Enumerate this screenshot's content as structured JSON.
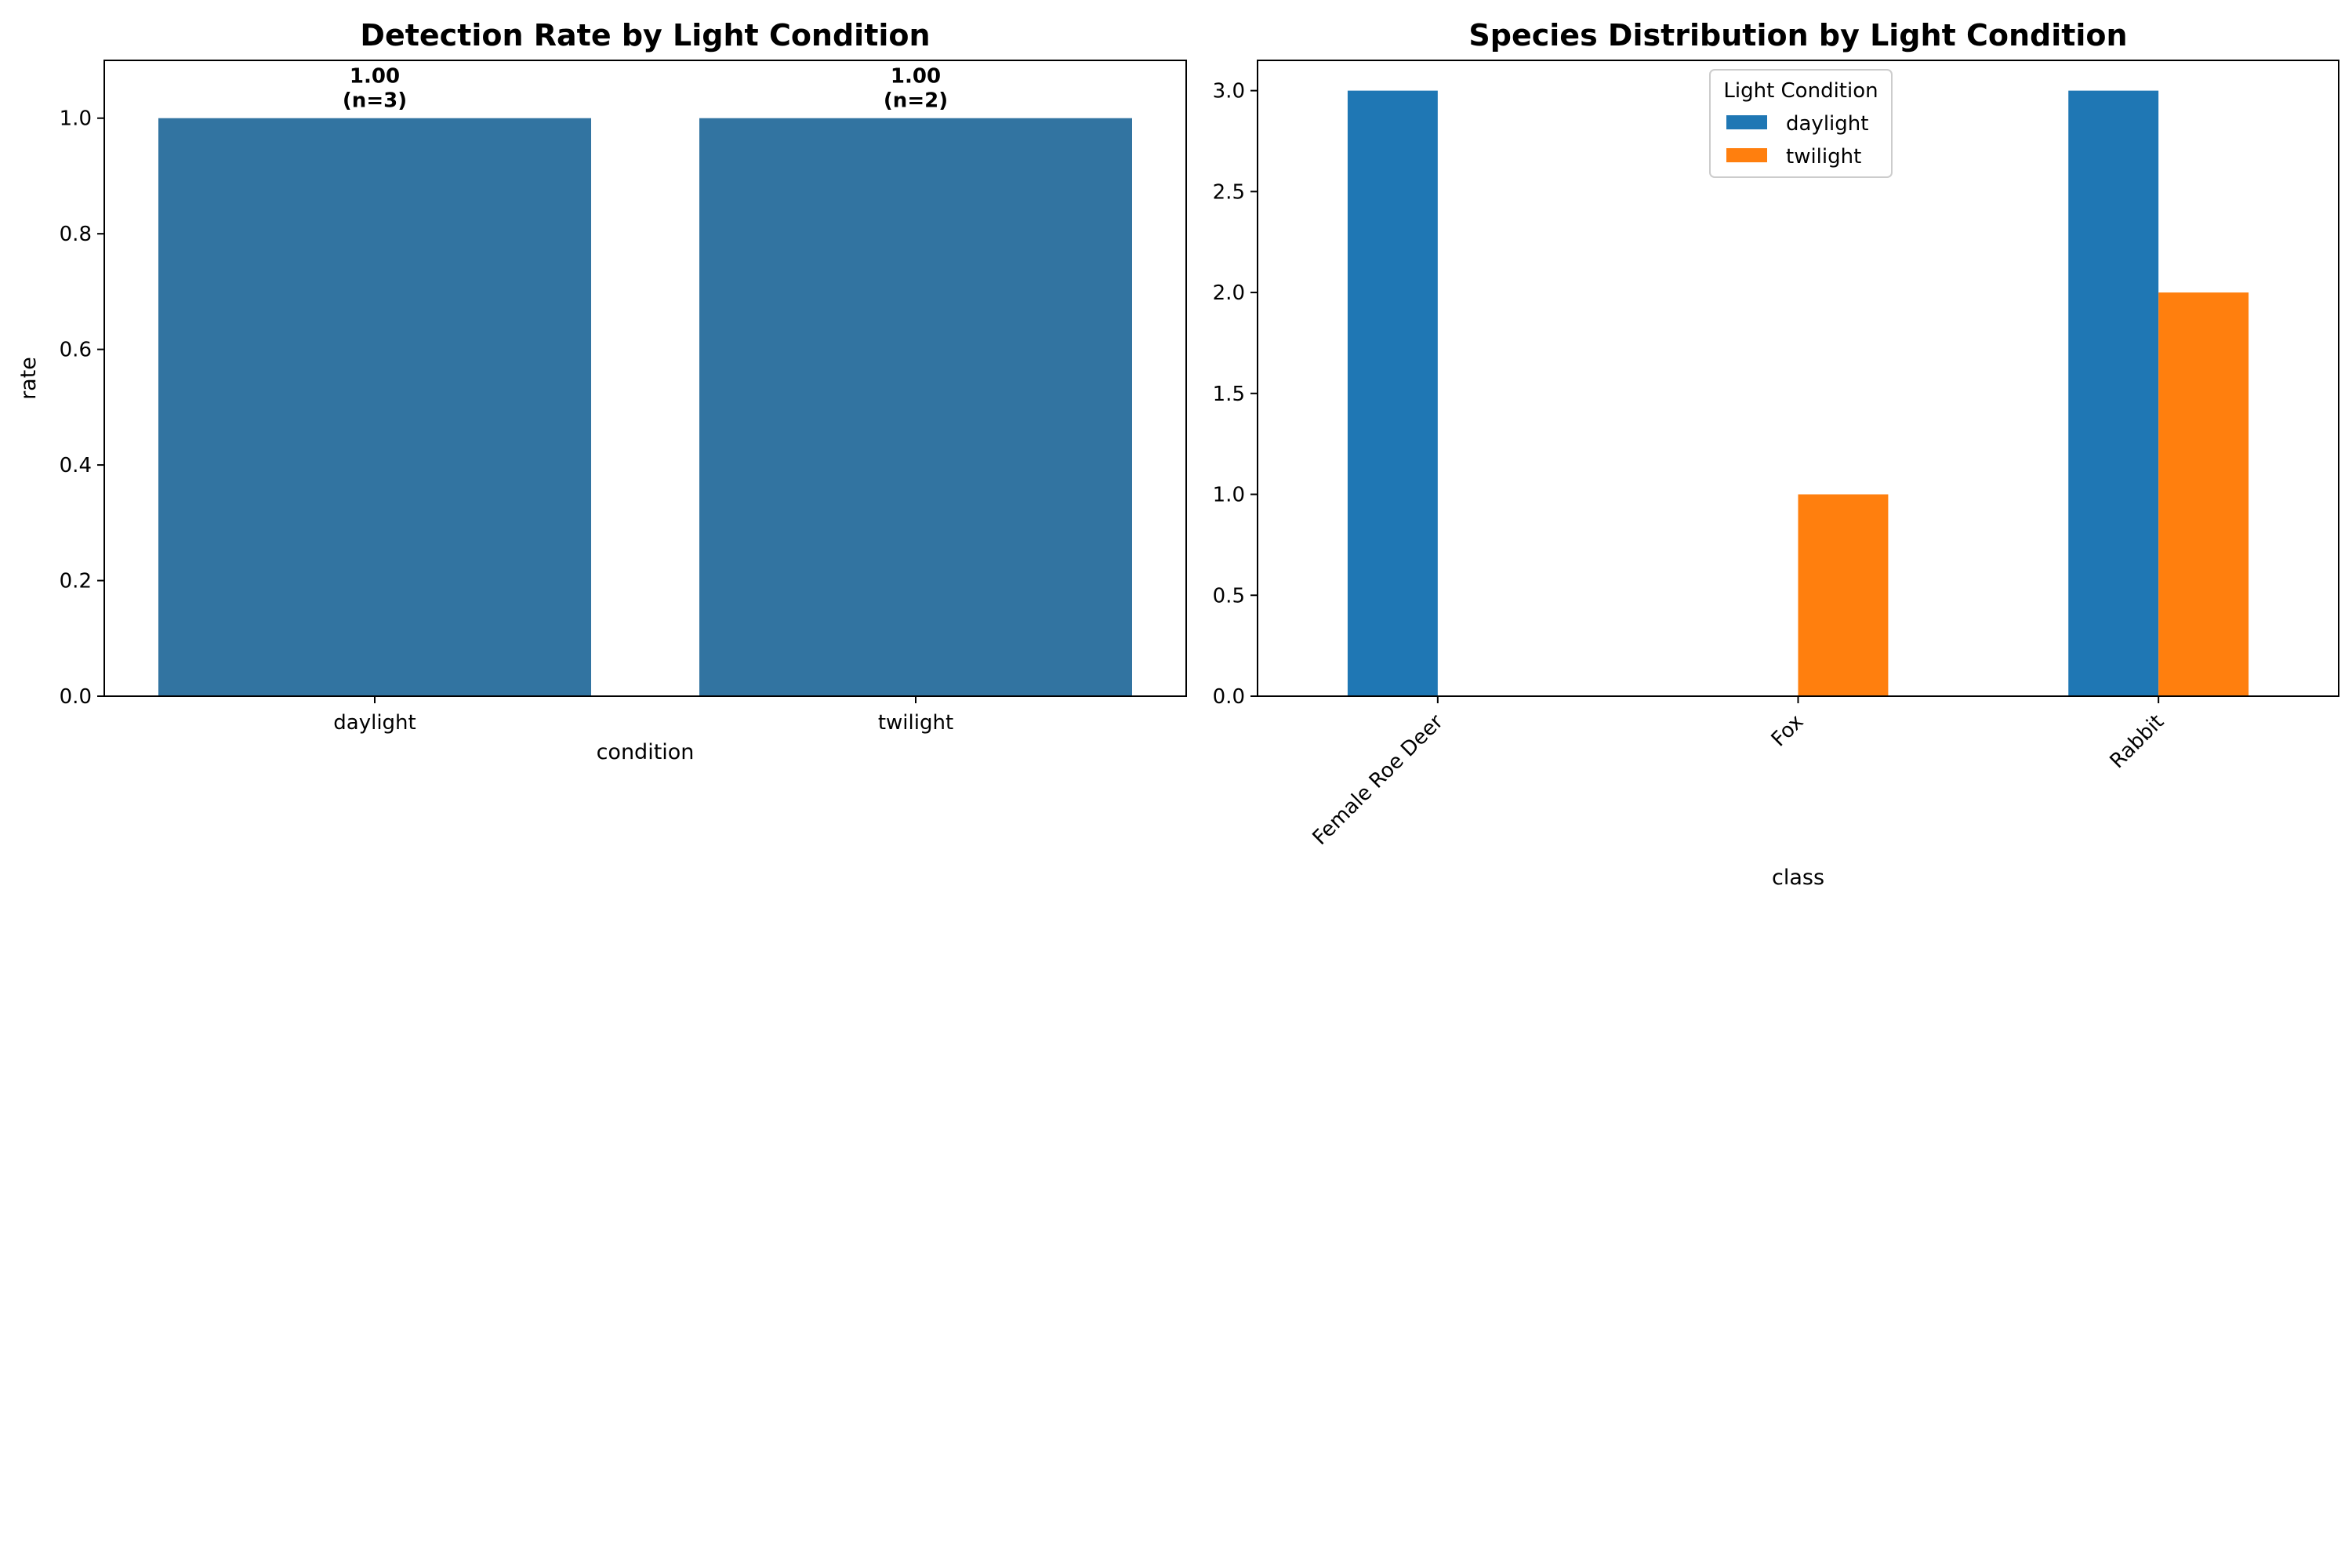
{
  "chart_data": [
    {
      "type": "bar",
      "title": "Detection Rate by Light Condition",
      "xlabel": "condition",
      "ylabel": "rate",
      "categories": [
        "daylight",
        "twilight"
      ],
      "values": [
        1.0,
        1.0
      ],
      "bar_labels": [
        {
          "value": "1.00",
          "n": "(n=3)"
        },
        {
          "value": "1.00",
          "n": "(n=2)"
        }
      ],
      "ylim": [
        0,
        1.1
      ],
      "yticks": [
        0.0,
        0.2,
        0.4,
        0.6,
        0.8,
        1.0
      ],
      "ytick_labels": [
        "0.0",
        "0.2",
        "0.4",
        "0.6",
        "0.8",
        "1.0"
      ],
      "grid": false,
      "color": "#3274a1"
    },
    {
      "type": "bar",
      "title": "Species Distribution by Light Condition",
      "xlabel": "class",
      "ylabel": "",
      "categories": [
        "Female Roe Deer",
        "Fox",
        "Rabbit"
      ],
      "series": [
        {
          "name": "daylight",
          "values": [
            3,
            0,
            3
          ],
          "color": "#1f77b4"
        },
        {
          "name": "twilight",
          "values": [
            0,
            1,
            2
          ],
          "color": "#ff7f0e"
        }
      ],
      "ylim": [
        0,
        3.15
      ],
      "yticks": [
        0.0,
        0.5,
        1.0,
        1.5,
        2.0,
        2.5,
        3.0
      ],
      "ytick_labels": [
        "0.0",
        "0.5",
        "1.0",
        "1.5",
        "2.0",
        "2.5",
        "3.0"
      ],
      "legend": {
        "title": "Light Condition",
        "placement": "upper-center"
      },
      "grid": false
    }
  ]
}
